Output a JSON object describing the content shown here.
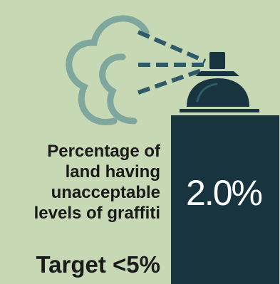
{
  "caption": {
    "line1": "Percentage of",
    "line2": "land having",
    "line3": "unacceptable",
    "line4": "levels of graffiti"
  },
  "target": "Target <5%",
  "value": "2.0%",
  "colors": {
    "background": "#c6d8b4",
    "can": "#17343f",
    "spray": "#2f5a68",
    "cloud": "#7fa79e",
    "text": "#1a1a1a",
    "value_text": "#ffffff"
  },
  "icons": [
    "spray-can-icon",
    "spray-cloud-icon",
    "spray-mist-icon"
  ]
}
